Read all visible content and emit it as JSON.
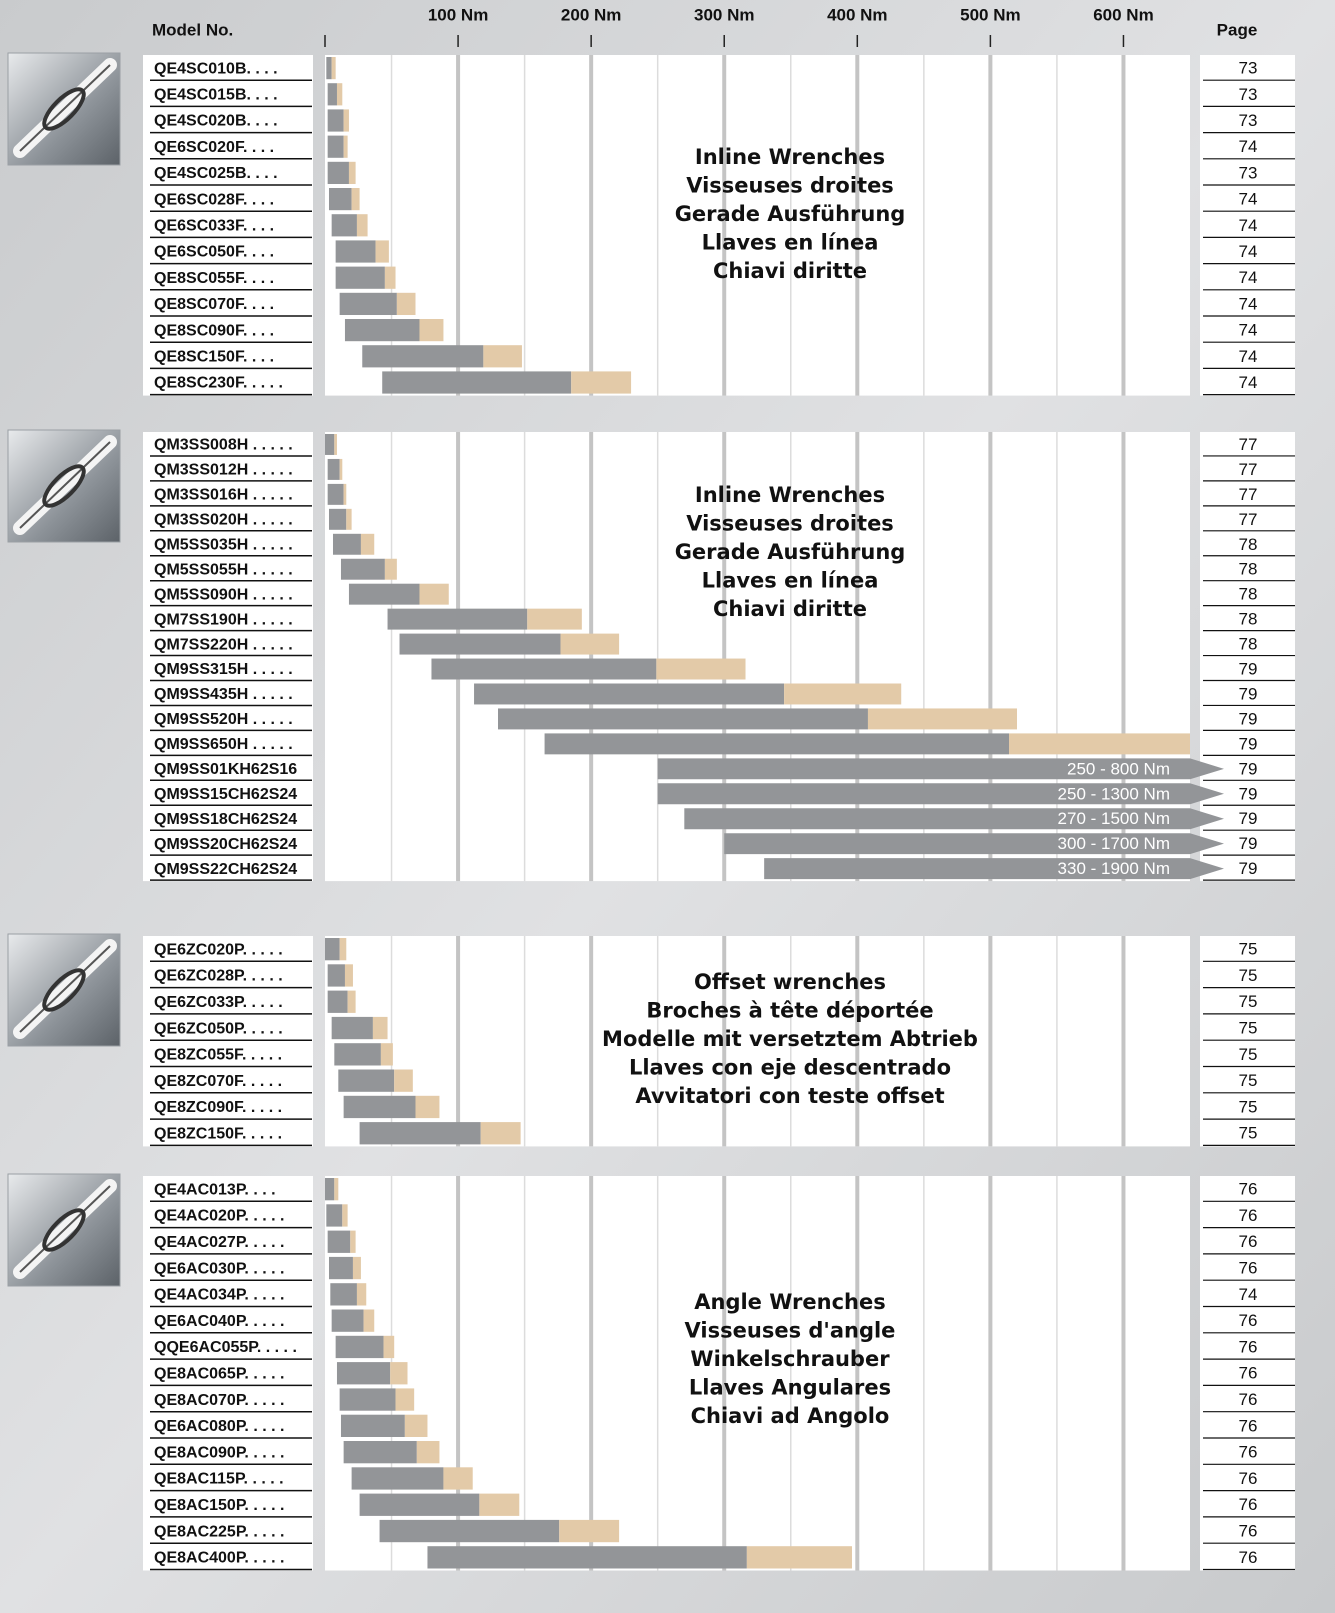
{
  "chart_data": {
    "type": "range-bar",
    "model_header": "Model No.",
    "page_header": "Page",
    "xlim": [
      0,
      650
    ],
    "xticks": [
      {
        "value": 100,
        "label": "100 Nm"
      },
      {
        "value": 200,
        "label": "200 Nm"
      },
      {
        "value": 300,
        "label": "300 Nm"
      },
      {
        "value": 400,
        "label": "400 Nm"
      },
      {
        "value": 500,
        "label": "500 Nm"
      },
      {
        "value": 600,
        "label": "600 Nm"
      }
    ],
    "minor_grid": [
      50,
      150,
      250,
      350,
      450,
      550
    ],
    "colors": {
      "low": "#939598",
      "high": "#e3caa8"
    },
    "sections": [
      {
        "labels": [
          "Inline Wrenches",
          "Visseuses droites",
          "Gerade Ausführung",
          "Llaves en línea",
          "Chiavi diritte"
        ],
        "rows": [
          {
            "model": "QE4SC010B. . . .",
            "values": [
              1,
              5,
              8
            ],
            "page": "73"
          },
          {
            "model": "QE4SC015B. . . .",
            "values": [
              2,
              9,
              13
            ],
            "page": "73"
          },
          {
            "model": "QE4SC020B. . . .",
            "values": [
              2,
              14,
              18
            ],
            "page": "73"
          },
          {
            "model": "QE6SC020F. . . .",
            "values": [
              2,
              14,
              17
            ],
            "page": "74"
          },
          {
            "model": "QE4SC025B. . . .",
            "values": [
              2,
              18,
              23
            ],
            "page": "73"
          },
          {
            "model": "QE6SC028F. . . .",
            "values": [
              3,
              20,
              26
            ],
            "page": "74"
          },
          {
            "model": "QE6SC033F. . . .",
            "values": [
              5,
              24,
              32
            ],
            "page": "74"
          },
          {
            "model": "QE6SC050F. . . .",
            "values": [
              8,
              38,
              48
            ],
            "page": "74"
          },
          {
            "model": "QE8SC055F. . . .",
            "values": [
              8,
              45,
              53
            ],
            "page": "74"
          },
          {
            "model": "QE8SC070F. . . .",
            "values": [
              11,
              54,
              68
            ],
            "page": "74"
          },
          {
            "model": "QE8SC090F. . . .",
            "values": [
              15,
              71,
              89
            ],
            "page": "74"
          },
          {
            "model": "QE8SC150F. . . .",
            "values": [
              28,
              119,
              148
            ],
            "page": "74"
          },
          {
            "model": "QE8SC230F. . . . .",
            "values": [
              43,
              185,
              230
            ],
            "page": "74"
          }
        ]
      },
      {
        "labels": [
          "Inline Wrenches",
          "Visseuses droites",
          "Gerade Ausführung",
          "Llaves en línea",
          "Chiavi diritte"
        ],
        "rows": [
          {
            "model": "QM3SS008H . . . . .",
            "values": [
              0,
              7,
              9
            ],
            "page": "77"
          },
          {
            "model": "QM3SS012H . . . . .",
            "values": [
              2,
              11,
              13
            ],
            "page": "77"
          },
          {
            "model": "QM3SS016H . . . . .",
            "values": [
              2,
              14,
              16
            ],
            "page": "77"
          },
          {
            "model": "QM3SS020H . . . . .",
            "values": [
              3,
              16,
              20
            ],
            "page": "77"
          },
          {
            "model": "QM5SS035H . . . . .",
            "values": [
              6,
              27,
              37
            ],
            "page": "78"
          },
          {
            "model": "QM5SS055H . . . . .",
            "values": [
              12,
              45,
              54
            ],
            "page": "78"
          },
          {
            "model": "QM5SS090H . . . . .",
            "values": [
              18,
              71,
              93
            ],
            "page": "78"
          },
          {
            "model": "QM7SS190H . . . . .",
            "values": [
              47,
              152,
              193
            ],
            "page": "78"
          },
          {
            "model": "QM7SS220H . . . . .",
            "values": [
              56,
              177,
              221
            ],
            "page": "78"
          },
          {
            "model": "QM9SS315H . . . . .",
            "values": [
              80,
              249,
              316
            ],
            "page": "79"
          },
          {
            "model": "QM9SS435H . . . . .",
            "values": [
              112,
              345,
              433
            ],
            "page": "79"
          },
          {
            "model": "QM9SS520H . . . . .",
            "values": [
              130,
              408,
              520
            ],
            "page": "79"
          },
          {
            "model": "QM9SS650H . . . . .",
            "values": [
              165,
              514,
              650
            ],
            "page": "79"
          },
          {
            "model": "QM9SS01KH62S16",
            "values": [
              250,
              800
            ],
            "value_labels": "250 - 800 Nm",
            "page": "79"
          },
          {
            "model": "QM9SS15CH62S24",
            "values": [
              250,
              1300
            ],
            "value_labels": "250 - 1300 Nm",
            "page": "79"
          },
          {
            "model": "QM9SS18CH62S24",
            "values": [
              270,
              1500
            ],
            "value_labels": "270 - 1500 Nm",
            "page": "79"
          },
          {
            "model": "QM9SS20CH62S24",
            "values": [
              300,
              1700
            ],
            "value_labels": "300 - 1700 Nm",
            "page": "79"
          },
          {
            "model": "QM9SS22CH62S24",
            "values": [
              330,
              1900
            ],
            "value_labels": "330 - 1900 Nm",
            "page": "79"
          }
        ]
      },
      {
        "labels": [
          "Offset wrenches",
          "Broches à tête déportée",
          "Modelle mit versetztem Abtrieb",
          "Llaves con eje descentrado",
          "Avvitatori con teste offset"
        ],
        "rows": [
          {
            "model": "QE6ZC020P. . . . .",
            "values": [
              0,
              11,
              16
            ],
            "page": "75"
          },
          {
            "model": "QE6ZC028P. . . . .",
            "values": [
              2,
              15,
              21
            ],
            "page": "75"
          },
          {
            "model": "QE6ZC033P. . . . .",
            "values": [
              2,
              17,
              23
            ],
            "page": "75"
          },
          {
            "model": "QE6ZC050P. . . . .",
            "values": [
              5,
              36,
              47
            ],
            "page": "75"
          },
          {
            "model": "QE8ZC055F. . . . .",
            "values": [
              7,
              42,
              51
            ],
            "page": "75"
          },
          {
            "model": "QE8ZC070F. . . . .",
            "values": [
              10,
              52,
              66
            ],
            "page": "75"
          },
          {
            "model": "QE8ZC090F. . . . .",
            "values": [
              14,
              68,
              86
            ],
            "page": "75"
          },
          {
            "model": "QE8ZC150F. . . . .",
            "values": [
              26,
              117,
              147
            ],
            "page": "75"
          }
        ]
      },
      {
        "labels": [
          "Angle Wrenches",
          "Visseuses d'angle",
          "Winkelschrauber",
          "Llaves Angulares",
          "Chiavi  ad Angolo"
        ],
        "rows": [
          {
            "model": "QE4AC013P. . . .",
            "values": [
              0,
              7,
              10
            ],
            "page": "76"
          },
          {
            "model": "QE4AC020P. . . . .",
            "values": [
              1,
              13,
              17
            ],
            "page": "76"
          },
          {
            "model": "QE4AC027P. . . . .",
            "values": [
              2,
              19,
              23
            ],
            "page": "76"
          },
          {
            "model": "QE6AC030P. . . . .",
            "values": [
              3,
              21,
              27
            ],
            "page": "76"
          },
          {
            "model": "QE4AC034P. . . . .",
            "values": [
              4,
              24,
              31
            ],
            "page": "74"
          },
          {
            "model": "QE6AC040P. . . . .",
            "values": [
              5,
              29,
              37
            ],
            "page": "76"
          },
          {
            "model": "QQE6AC055P. . . . .",
            "values": [
              8,
              44,
              52
            ],
            "page": "76"
          },
          {
            "model": "QE8AC065P. . . . .",
            "values": [
              9,
              49,
              62
            ],
            "page": "76"
          },
          {
            "model": "QE8AC070P. . . . .",
            "values": [
              11,
              53,
              67
            ],
            "page": "76"
          },
          {
            "model": "QE6AC080P. . . . .",
            "values": [
              12,
              60,
              77
            ],
            "page": "76"
          },
          {
            "model": "QE8AC090P. . . . .",
            "values": [
              14,
              69,
              86
            ],
            "page": "76"
          },
          {
            "model": "QE8AC115P. . . . .",
            "values": [
              20,
              89,
              111
            ],
            "page": "76"
          },
          {
            "model": "QE8AC150P. . . . .",
            "values": [
              26,
              116,
              146
            ],
            "page": "76"
          },
          {
            "model": "QE8AC225P. . . . .",
            "values": [
              41,
              176,
              221
            ],
            "page": "76"
          },
          {
            "model": "QE8AC400P. . . . .",
            "values": [
              77,
              317,
              396
            ],
            "page": "76"
          }
        ]
      }
    ]
  }
}
